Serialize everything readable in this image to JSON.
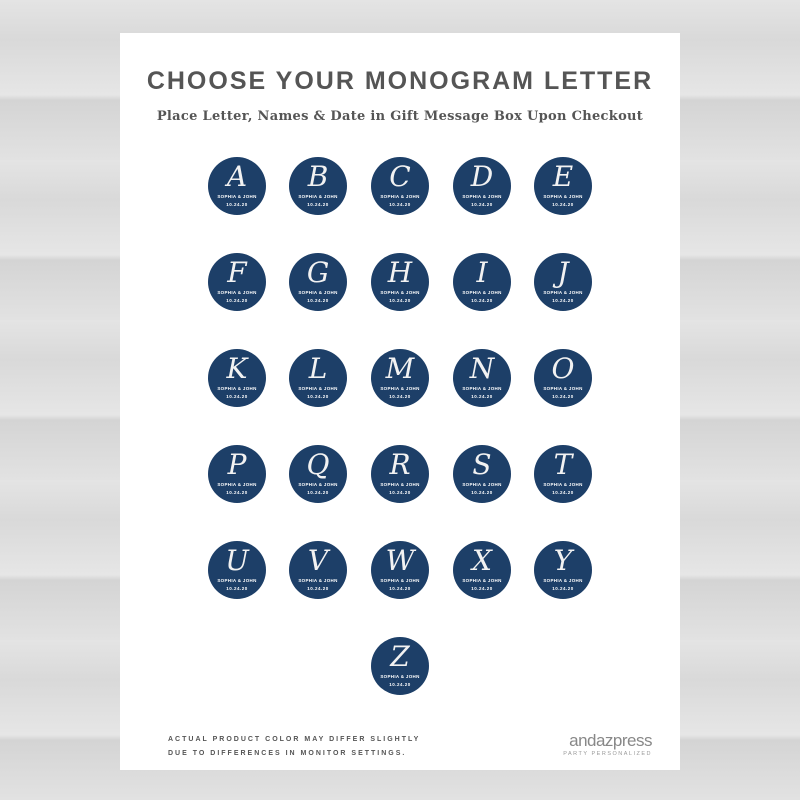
{
  "title": "CHOOSE YOUR MONOGRAM LETTER",
  "subtitle": "Place Letter, Names & Date in Gift Message Box Upon Checkout",
  "badge_color": "#1d3f68",
  "names": "SOPHIA & JOHN",
  "date": "10.24.20",
  "letters": [
    "A",
    "B",
    "C",
    "D",
    "E",
    "F",
    "G",
    "H",
    "I",
    "J",
    "K",
    "L",
    "M",
    "N",
    "O",
    "P",
    "Q",
    "R",
    "S",
    "T",
    "U",
    "V",
    "W",
    "X",
    "Y",
    "Z"
  ],
  "footer": {
    "line1": "ACTUAL PRODUCT COLOR MAY DIFFER SLIGHTLY",
    "line2": "DUE TO DIFFERENCES IN MONITOR SETTINGS."
  },
  "logo": {
    "brand": "andazpress",
    "tagline": "PARTY PERSONALIZED"
  }
}
